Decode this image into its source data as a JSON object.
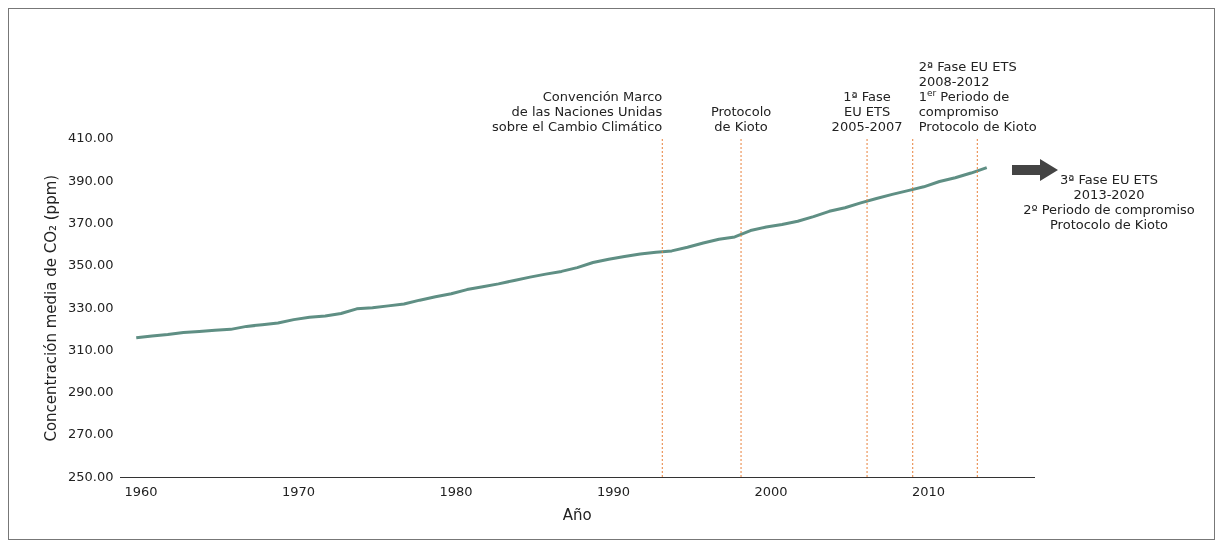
{
  "chart_data": {
    "type": "line",
    "xlabel": "Año",
    "ylabel": "Concentración media de CO₂ (ppm)",
    "x": [
      1959.7,
      1960.7,
      1961.7,
      1962.7,
      1963.7,
      1964.7,
      1965.7,
      1966.7,
      1967.7,
      1968.7,
      1969.7,
      1970.7,
      1971.7,
      1972.7,
      1973.7,
      1974.7,
      1975.7,
      1976.7,
      1977.7,
      1978.7,
      1979.7,
      1980.7,
      1981.7,
      1982.7,
      1983.7,
      1984.7,
      1985.7,
      1986.7,
      1987.7,
      1988.7,
      1989.7,
      1990.7,
      1991.7,
      1992.7,
      1993.7,
      1994.7,
      1995.7,
      1996.7,
      1997.7,
      1998.7,
      1999.7,
      2000.7,
      2001.7,
      2002.7,
      2003.7,
      2004.7,
      2005.7,
      2006.7,
      2007.7,
      2008.7,
      2009.7,
      2010.7,
      2011.7,
      2012.7,
      2013.7
    ],
    "series": [
      {
        "color": "#5f8f84",
        "values": [
          316.0,
          316.9,
          317.6,
          318.5,
          319.0,
          319.6,
          320.0,
          321.4,
          322.2,
          323.0,
          324.6,
          325.7,
          326.3,
          327.5,
          329.7,
          330.2,
          331.1,
          332.0,
          333.8,
          335.4,
          336.8,
          338.8,
          340.1,
          341.5,
          343.1,
          344.7,
          346.1,
          347.4,
          349.2,
          351.6,
          353.1,
          354.4,
          355.6,
          356.5,
          357.1,
          358.8,
          360.8,
          362.6,
          363.7,
          366.7,
          368.4,
          369.6,
          371.1,
          373.3,
          375.8,
          377.5,
          379.8,
          381.9,
          383.8,
          385.6,
          387.4,
          389.9,
          391.7,
          393.9,
          396.5
        ]
      }
    ],
    "xlim": [
      1958.7,
      2016.7
    ],
    "xticks": [
      1960,
      1970,
      1980,
      1990,
      2000,
      2010
    ],
    "ylim": [
      250,
      410
    ],
    "yticks": [
      {
        "value": 250,
        "label": "250.00"
      },
      {
        "value": 270,
        "label": "270.00"
      },
      {
        "value": 290,
        "label": "290.00"
      },
      {
        "value": 310,
        "label": "310.00"
      },
      {
        "value": 330,
        "label": "330.00"
      },
      {
        "value": 350,
        "label": "350.00"
      },
      {
        "value": 370,
        "label": "370.00"
      },
      {
        "value": 390,
        "label": "390.00"
      },
      {
        "value": 410,
        "label": "410.00"
      }
    ],
    "grid": false,
    "legend": false,
    "marker": "none",
    "line_style": "solid",
    "ref_lines": [
      {
        "axis": "x",
        "value": 1993.1,
        "label": "Convención Marco\nde las Naciones Unidas\nsobre el Cambio Climático",
        "color": "#e8803a",
        "line_style": "dotted"
      },
      {
        "axis": "x",
        "value": 1998.1,
        "label": "Protocolo\nde Kioto",
        "color": "#e8803a",
        "line_style": "dotted"
      },
      {
        "axis": "x",
        "value": 2006.1,
        "label": "1ª Fase\nEU ETS\n2005-2007",
        "color": "#e8803a",
        "line_style": "dotted"
      },
      {
        "axis": "x",
        "value": 2009.0,
        "label": "2ª Fase EU ETS\n2008-2012\n1$^{er}$ Periodo de\ncompromiso\nProtocolo de Kioto",
        "color": "#e8803a",
        "line_style": "dotted"
      },
      {
        "axis": "x",
        "value": 2013.1,
        "label": null,
        "color": "#e8803a",
        "line_style": "dotted"
      }
    ],
    "annotations": [
      "3ª Fase EU ETS\n2013-2020\n2º Periodo de compromiso\nProtocolo de Kioto"
    ]
  }
}
